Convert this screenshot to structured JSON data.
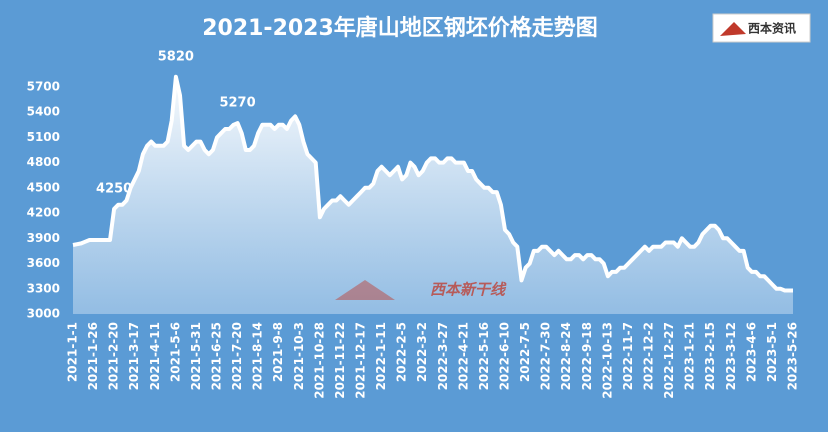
{
  "chart_data": {
    "type": "area",
    "title": "2021-2023年唐山地区钢坯价格走势图",
    "logo": "西本资讯",
    "watermark": "西本新干线",
    "categories": [
      "2021-1-1",
      null,
      null,
      null,
      null,
      "2021-1-26",
      null,
      null,
      null,
      null,
      "2021-2-20",
      null,
      null,
      null,
      null,
      "2021-3-17",
      null,
      null,
      null,
      null,
      "2021-4-11",
      null,
      null,
      null,
      null,
      "2021-5-6",
      null,
      null,
      null,
      null,
      "2021-5-31",
      null,
      null,
      null,
      null,
      "2021-6-25",
      null,
      null,
      null,
      null,
      "2021-7-20",
      null,
      null,
      null,
      null,
      "2021-8-14",
      null,
      null,
      null,
      null,
      "2021-9-8",
      null,
      null,
      null,
      null,
      "2021-10-3",
      null,
      null,
      null,
      null,
      "2021-10-28",
      null,
      null,
      null,
      null,
      "2021-11-22",
      null,
      null,
      null,
      null,
      "2021-12-17",
      null,
      null,
      null,
      null,
      "2022-1-11",
      null,
      null,
      null,
      null,
      "2022-2-5",
      null,
      null,
      null,
      null,
      "2022-3-2",
      null,
      null,
      null,
      null,
      "2022-3-27",
      null,
      null,
      null,
      null,
      "2022-4-21",
      null,
      null,
      null,
      null,
      "2022-5-16",
      null,
      null,
      null,
      null,
      "2022-6-10",
      null,
      null,
      null,
      null,
      "2022-7-5",
      null,
      null,
      null,
      null,
      "2022-7-30",
      null,
      null,
      null,
      null,
      "2022-8-24",
      null,
      null,
      null,
      null,
      "2022-9-18",
      null,
      null,
      null,
      null,
      "2022-10-13",
      null,
      null,
      null,
      null,
      "2022-11-7",
      null,
      null,
      null,
      null,
      "2022-12-2",
      null,
      null,
      null,
      null,
      "2022-12-27",
      null,
      null,
      null,
      null,
      "2023-1-21",
      null,
      null,
      null,
      null,
      "2023-2-15",
      null,
      null,
      null,
      null,
      "2023-3-12",
      null,
      null,
      null,
      null,
      "2023-4-6",
      null,
      null,
      null,
      null,
      "2023-5-1",
      null,
      null,
      null,
      null,
      "2023-5-26"
    ],
    "values": [
      3820,
      3830,
      3840,
      3860,
      3880,
      3880,
      3880,
      3880,
      3880,
      3880,
      4250,
      4300,
      4300,
      4350,
      4500,
      4600,
      4700,
      4900,
      5000,
      5050,
      5000,
      5000,
      5000,
      5050,
      5300,
      5820,
      5600,
      5000,
      4950,
      5000,
      5050,
      5050,
      4950,
      4900,
      4950,
      5100,
      5150,
      5200,
      5200,
      5250,
      5270,
      5150,
      4950,
      4950,
      5000,
      5150,
      5250,
      5250,
      5250,
      5200,
      5250,
      5250,
      5200,
      5300,
      5350,
      5250,
      5050,
      4900,
      4850,
      4800,
      4150,
      4250,
      4300,
      4350,
      4350,
      4400,
      4350,
      4300,
      4350,
      4400,
      4450,
      4500,
      4500,
      4550,
      4700,
      4750,
      4700,
      4650,
      4700,
      4750,
      4600,
      4650,
      4800,
      4750,
      4650,
      4700,
      4800,
      4850,
      4850,
      4800,
      4800,
      4850,
      4850,
      4800,
      4800,
      4800,
      4700,
      4700,
      4600,
      4550,
      4500,
      4500,
      4450,
      4450,
      4300,
      4000,
      3950,
      3850,
      3800,
      3400,
      3550,
      3600,
      3750,
      3750,
      3800,
      3800,
      3750,
      3700,
      3750,
      3700,
      3650,
      3650,
      3700,
      3700,
      3650,
      3700,
      3700,
      3650,
      3650,
      3600,
      3450,
      3500,
      3500,
      3550,
      3550,
      3600,
      3650,
      3700,
      3750,
      3800,
      3750,
      3800,
      3800,
      3800,
      3850,
      3850,
      3850,
      3800,
      3900,
      3850,
      3800,
      3800,
      3850,
      3950,
      4000,
      4050,
      4050,
      4000,
      3900,
      3900,
      3850,
      3800,
      3750,
      3750,
      3550,
      3500,
      3500,
      3450,
      3450,
      3400,
      3350,
      3300,
      3300,
      3280,
      3280,
      3280
    ],
    "labeled_points": [
      10,
      25,
      40
    ],
    "color": "#ffffff",
    "ylim": [
      3000,
      6000
    ],
    "yticks": [
      3000,
      3300,
      3600,
      3900,
      4200,
      4500,
      4800,
      5100,
      5400,
      5700
    ]
  }
}
